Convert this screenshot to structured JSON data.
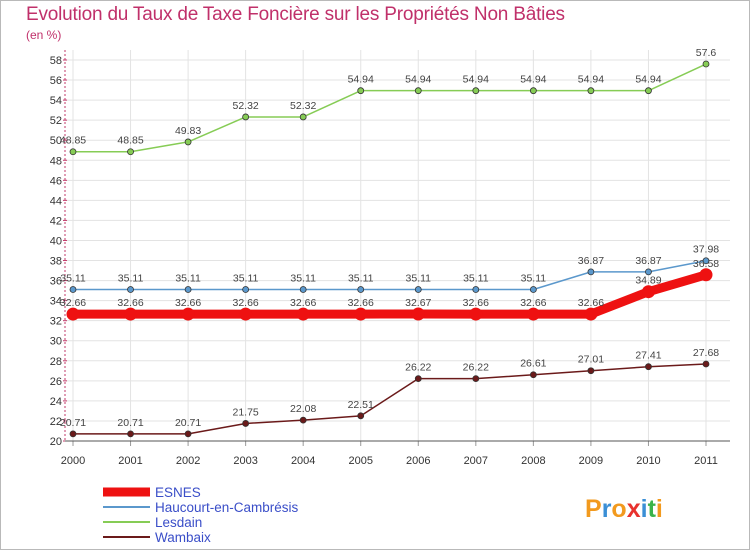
{
  "chart_data": {
    "type": "line",
    "title": "Evolution du Taux de Taxe Foncière sur les Propriétés Non Bâties",
    "ylabel": "(en %)",
    "xlabel": "",
    "ylim": [
      20,
      58
    ],
    "grid": true,
    "legend_position": "bottom-left",
    "x": [
      "2000",
      "2001",
      "2002",
      "2003",
      "2004",
      "2005",
      "2006",
      "2007",
      "2008",
      "2009",
      "2010",
      "2011"
    ],
    "yticks": [
      "20",
      "22",
      "24",
      "26",
      "28",
      "30",
      "32",
      "34",
      "36",
      "38",
      "40",
      "42",
      "44",
      "46",
      "48",
      "50",
      "52",
      "54",
      "56",
      "58"
    ],
    "series": [
      {
        "name": "Lesdain",
        "color": "#86cc55",
        "values": [
          48.85,
          48.85,
          49.83,
          52.32,
          52.32,
          54.94,
          54.94,
          54.94,
          54.94,
          54.94,
          54.94,
          57.6
        ],
        "labels": [
          "48.85",
          "48.85",
          "49.83",
          "52.32",
          "52.32",
          "54.94",
          "54.94",
          "54.94",
          "54.94",
          "54.94",
          "54.94",
          "57.6"
        ]
      },
      {
        "name": "Haucourt-en-Cambrésis",
        "color": "#5b98cc",
        "values": [
          35.11,
          35.11,
          35.11,
          35.11,
          35.11,
          35.11,
          35.11,
          35.11,
          35.11,
          36.87,
          36.87,
          37.98
        ],
        "labels": [
          "35.11",
          "35.11",
          "35.11",
          "35.11",
          "35.11",
          "35.11",
          "35.11",
          "35.11",
          "35.11",
          "36.87",
          "36.87",
          "37.98"
        ]
      },
      {
        "name": "Wambaix",
        "color": "#6b1a1a",
        "values": [
          20.71,
          20.71,
          20.71,
          21.75,
          22.08,
          22.51,
          26.22,
          26.22,
          26.61,
          27.01,
          27.41,
          27.68
        ],
        "labels": [
          "20.71",
          "20.71",
          "20.71",
          "21.75",
          "22.08",
          "22.51",
          "26.22",
          "26.22",
          "26.61",
          "27.01",
          "27.41",
          "27.68"
        ]
      },
      {
        "name": "ESNES",
        "color": "#ee1111",
        "values": [
          32.66,
          32.66,
          32.66,
          32.66,
          32.66,
          32.66,
          32.67,
          32.66,
          32.66,
          32.66,
          34.89,
          36.58
        ],
        "labels": [
          "32.66",
          "32.66",
          "32.66",
          "32.66",
          "32.66",
          "32.66",
          "32.67",
          "32.66",
          "32.66",
          "32.66",
          "34.89",
          "36.58"
        ]
      }
    ],
    "legend": [
      "ESNES",
      "Haucourt-en-Cambrésis",
      "Lesdain",
      "Wambaix"
    ]
  },
  "logo": {
    "letters": [
      "P",
      "r",
      "o",
      "x",
      "i",
      "t",
      "i"
    ],
    "colors": [
      "#f29a1e",
      "#3b8fd6",
      "#f29a1e",
      "#e8322e",
      "#3b8fd6",
      "#3bb34a",
      "#f29a1e"
    ]
  }
}
